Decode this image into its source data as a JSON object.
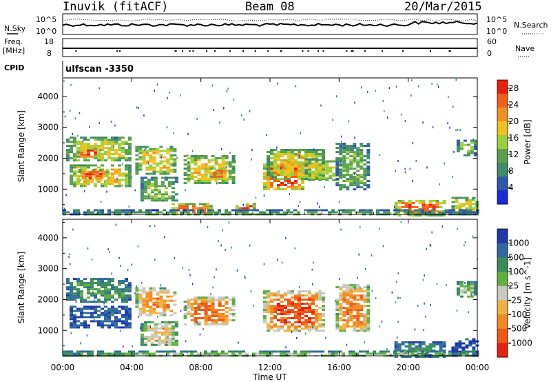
{
  "header": {
    "site": "Inuvik (fitACF)",
    "beam": "Beam 08",
    "date": "20/Mar/2015"
  },
  "strip_panels": {
    "nsky_label": "N.Sky",
    "nsky_ticks": [
      "10^5",
      "10^0"
    ],
    "nsearch_label": "N.Search",
    "nsearch_ticks": [
      "10^5",
      "10^0"
    ],
    "freq_label_1": "Freq.",
    "freq_label_2": "[MHz]",
    "freq_ticks": [
      "18",
      "8"
    ],
    "nave_label": "Nave",
    "nave_ticks": [
      "60",
      "0"
    ],
    "cpid_label": "CPID",
    "cpid_value": "ulfscan  -3350"
  },
  "chart_data": [
    {
      "type": "heatmap",
      "title": "",
      "xlabel": "Time UT",
      "ylabel": "Slant Range [km]",
      "x_ticks": [
        "00:00",
        "04:00",
        "08:00",
        "12:00",
        "16:00",
        "20:00",
        "00:00"
      ],
      "xlim_hours": [
        0,
        24
      ],
      "y_ticks": [
        "1000",
        "2000",
        "3000",
        "4000"
      ],
      "ylim": [
        180,
        4600
      ],
      "colorbar": {
        "label": "Power [dB]",
        "ticks": [
          "4",
          "8",
          "12",
          "16",
          "20",
          "24",
          "28"
        ],
        "range": [
          0,
          30
        ],
        "colors": [
          "#1a2ad8",
          "#2e58a8",
          "#3f8a6a",
          "#5aa04a",
          "#9cd038",
          "#f0c020",
          "#f09020",
          "#f06018",
          "#e82010"
        ]
      },
      "regions": [
        {
          "t0": 0.2,
          "t1": 3.9,
          "r0": 1900,
          "r1": 2700,
          "level": 0.55
        },
        {
          "t0": 0.4,
          "t1": 3.8,
          "r0": 1100,
          "r1": 1800,
          "level": 0.65
        },
        {
          "t0": 0.8,
          "t1": 2.0,
          "r0": 2050,
          "r1": 2350,
          "level": 0.9
        },
        {
          "t0": 0.9,
          "t1": 2.5,
          "r0": 1300,
          "r1": 1650,
          "level": 0.85
        },
        {
          "t0": 4.2,
          "t1": 6.5,
          "r0": 1500,
          "r1": 2400,
          "level": 0.6
        },
        {
          "t0": 4.5,
          "t1": 6.5,
          "r0": 600,
          "r1": 1400,
          "level": 0.45
        },
        {
          "t0": 6.3,
          "t1": 8.5,
          "r0": 180,
          "r1": 550,
          "level": 0.8
        },
        {
          "t0": 7.0,
          "t1": 9.8,
          "r0": 1200,
          "r1": 2100,
          "level": 0.6
        },
        {
          "t0": 8.5,
          "t1": 9.4,
          "r0": 1350,
          "r1": 1700,
          "level": 0.85
        },
        {
          "t0": 10.0,
          "t1": 11.0,
          "r0": 200,
          "r1": 550,
          "level": 0.85
        },
        {
          "t0": 11.6,
          "t1": 13.8,
          "r0": 1000,
          "r1": 1900,
          "level": 0.9
        },
        {
          "t0": 11.8,
          "t1": 15.0,
          "r0": 1300,
          "r1": 2300,
          "level": 0.6
        },
        {
          "t0": 14.0,
          "t1": 16.0,
          "r0": 1300,
          "r1": 2000,
          "level": 0.55
        },
        {
          "t0": 15.8,
          "t1": 17.6,
          "r0": 1000,
          "r1": 2500,
          "level": 0.4
        },
        {
          "t0": 19.2,
          "t1": 22.0,
          "r0": 180,
          "r1": 650,
          "level": 0.85
        },
        {
          "t0": 22.5,
          "t1": 24.0,
          "r0": 200,
          "r1": 750,
          "level": 0.6
        },
        {
          "t0": 22.8,
          "t1": 23.8,
          "r0": 2100,
          "r1": 2600,
          "level": 0.45
        },
        {
          "t0": 0.0,
          "t1": 24.0,
          "r0": 180,
          "r1": 350,
          "level": 0.35
        }
      ]
    },
    {
      "type": "heatmap",
      "title": "",
      "xlabel": "Time UT",
      "ylabel": "Slant Range [km]",
      "x_ticks": [
        "00:00",
        "04:00",
        "08:00",
        "12:00",
        "16:00",
        "20:00",
        "00:00"
      ],
      "xlim_hours": [
        0,
        24
      ],
      "y_ticks": [
        "1000",
        "2000",
        "3000",
        "4000"
      ],
      "ylim": [
        180,
        4600
      ],
      "colorbar": {
        "label": "Velocity [m s^-1]",
        "ticks": [
          "1000",
          "500",
          "100",
          "25",
          "-25",
          "-100",
          "-500",
          "-1000"
        ],
        "colors": [
          "#1f3aa8",
          "#2e6aa0",
          "#3a8a5a",
          "#60b040",
          "#c8c8c0",
          "#f0b040",
          "#f08a20",
          "#f05818",
          "#e82010"
        ]
      },
      "regions": [
        {
          "t0": 0.2,
          "t1": 3.9,
          "r0": 1900,
          "r1": 2700,
          "level": 0.3
        },
        {
          "t0": 0.4,
          "t1": 3.8,
          "r0": 1100,
          "r1": 1800,
          "level": 0.15
        },
        {
          "t0": 4.2,
          "t1": 6.5,
          "r0": 1500,
          "r1": 2400,
          "level": 0.7
        },
        {
          "t0": 4.5,
          "t1": 6.5,
          "r0": 500,
          "r1": 1300,
          "level": 0.55
        },
        {
          "t0": 7.0,
          "t1": 9.8,
          "r0": 1200,
          "r1": 2100,
          "level": 0.8
        },
        {
          "t0": 11.6,
          "t1": 15.0,
          "r0": 1000,
          "r1": 2300,
          "level": 0.85
        },
        {
          "t0": 15.8,
          "t1": 17.6,
          "r0": 1000,
          "r1": 2500,
          "level": 0.75
        },
        {
          "t0": 19.2,
          "t1": 22.0,
          "r0": 180,
          "r1": 650,
          "level": 0.25
        },
        {
          "t0": 22.5,
          "t1": 24.0,
          "r0": 200,
          "r1": 750,
          "level": 0.1
        },
        {
          "t0": 22.8,
          "t1": 23.8,
          "r0": 2100,
          "r1": 2600,
          "level": 0.45
        },
        {
          "t0": 0.0,
          "t1": 24.0,
          "r0": 180,
          "r1": 350,
          "level": 0.4
        }
      ]
    }
  ]
}
